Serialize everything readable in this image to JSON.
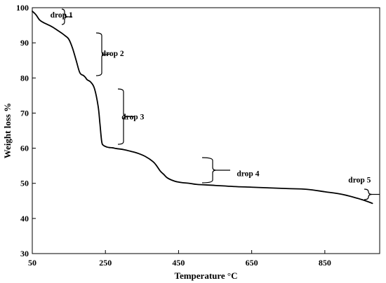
{
  "chart_data": {
    "type": "line",
    "xlabel": "Temperature °C",
    "ylabel": "Weight loss %",
    "xlim": [
      50,
      1000
    ],
    "ylim": [
      30,
      100
    ],
    "x_ticks": [
      50,
      250,
      450,
      650,
      850
    ],
    "y_ticks": [
      30,
      40,
      50,
      60,
      70,
      80,
      90,
      100
    ],
    "grid": false,
    "legend": "none",
    "line_color": "#000000",
    "series": [
      {
        "x": [
          50,
          60,
          70,
          80,
          90,
          100,
          110,
          120,
          130,
          140,
          150,
          160,
          170,
          180,
          190,
          195,
          200,
          210,
          220,
          230,
          235,
          240,
          245,
          250,
          255,
          260,
          270,
          280,
          300,
          320,
          340,
          360,
          380,
          390,
          400,
          410,
          420,
          440,
          460,
          480,
          500,
          550,
          600,
          650,
          700,
          750,
          800,
          850,
          900,
          950,
          980
        ],
        "y": [
          99,
          98,
          96.5,
          95.8,
          95.3,
          94.8,
          94.2,
          93.5,
          92.8,
          92,
          91,
          88.5,
          85,
          81.5,
          80.7,
          80.2,
          79.5,
          78.8,
          77,
          72,
          67,
          61.8,
          60.8,
          60.5,
          60.3,
          60.2,
          60.1,
          59.9,
          59.6,
          59.1,
          58.5,
          57.6,
          56.2,
          55,
          53.5,
          52.5,
          51.5,
          50.6,
          50.2,
          50,
          49.7,
          49.4,
          49.1,
          48.9,
          48.7,
          48.5,
          48.3,
          47.6,
          46.8,
          45.4,
          44.3
        ]
      }
    ],
    "annotations": [
      {
        "text": "drop 1",
        "x": 130,
        "y": 98
      },
      {
        "text": "drop 2",
        "x": 270,
        "y": 87
      },
      {
        "text": "drop 3",
        "x": 325,
        "y": 69
      },
      {
        "text": "drop 4",
        "x": 640,
        "y": 52.8
      },
      {
        "text": "drop 5",
        "x": 945,
        "y": 51
      }
    ]
  }
}
